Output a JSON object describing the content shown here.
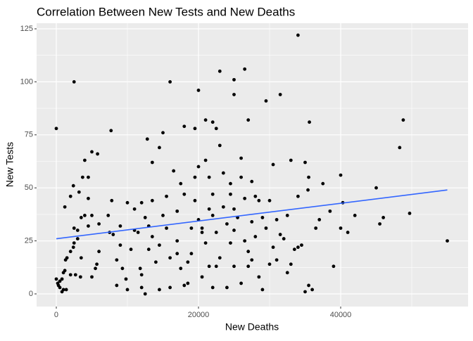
{
  "chart_data": {
    "type": "scatter",
    "title": "Correlation Between New Tests and New Deaths",
    "x_label": "New Deaths",
    "y_label": "New Tests",
    "color": "#000000",
    "x": [
      0,
      2500,
      16000,
      34000,
      26500,
      23000,
      25000,
      20000,
      29500,
      31500,
      25000,
      48800,
      48300,
      55000,
      49700,
      45000,
      40000,
      39000,
      35600,
      35500,
      35400,
      35000,
      34000,
      33000,
      21000,
      22000,
      27000,
      19500,
      18000,
      22500,
      7700,
      15000,
      14500,
      12800,
      13500,
      5000,
      5800,
      2400,
      3200,
      3700,
      4500,
      4000,
      4500,
      2000,
      1200,
      5000,
      4000,
      3500,
      3000,
      2500,
      2500,
      2400,
      2000,
      1500,
      1300,
      1000,
      1200,
      800,
      500,
      0,
      200,
      300,
      500,
      800,
      1000,
      1400,
      2000,
      2700,
      3400,
      5000,
      5500,
      5700,
      6000,
      7300,
      7800,
      8000,
      8500,
      9000,
      9300,
      9800,
      10000,
      10500,
      11000,
      11500,
      12000,
      11800,
      12000,
      12500,
      12000,
      13000,
      13500,
      13500,
      14000,
      14500,
      15000,
      15500,
      16000,
      15500,
      16500,
      17000,
      17500,
      17000,
      18000,
      18000,
      18500,
      19000,
      19500,
      20000,
      20000,
      20500,
      20500,
      21000,
      21500,
      21500,
      22000,
      22500,
      22000,
      23000,
      23500,
      23500,
      24000,
      24000,
      24500,
      25000,
      25000,
      25500,
      26000,
      26500,
      26000,
      26500,
      27000,
      27000,
      27500,
      28000,
      28000,
      28500,
      29000,
      29500,
      30000,
      30000,
      30500,
      31000,
      31500,
      32000,
      32500,
      33000,
      34000,
      35000,
      35500,
      36000,
      36500,
      37000,
      37500,
      38500,
      40000,
      40300,
      41000,
      42000,
      45500,
      46000,
      16000,
      17000,
      19000,
      20500,
      21500,
      22500,
      24500,
      27500,
      28500,
      30500,
      31000,
      32500,
      23000,
      18500,
      13000,
      9000,
      10000,
      14500,
      3000,
      4500,
      6000,
      7500,
      3500,
      26000,
      25000,
      29000,
      33500,
      34500,
      21000,
      24500,
      27500,
      12500,
      11000,
      8500,
      17500,
      19500,
      22000
    ],
    "values": [
      78,
      100,
      100,
      122,
      106,
      105,
      101,
      96,
      91,
      94,
      94,
      82,
      69,
      25,
      38,
      50,
      56,
      13,
      81,
      55,
      49,
      62,
      46,
      63,
      82,
      81,
      82,
      78,
      79,
      78,
      77,
      76,
      69,
      73,
      62,
      67,
      66,
      51,
      48,
      55,
      55,
      63,
      45,
      46,
      41,
      37,
      37,
      36,
      30,
      31,
      24,
      22,
      20,
      17,
      16,
      10,
      11,
      7,
      6,
      7,
      5,
      4,
      3,
      1,
      2,
      2,
      9,
      9,
      8,
      8,
      12,
      14,
      20,
      37,
      44,
      28,
      4,
      32,
      12,
      7,
      43,
      21,
      30,
      29,
      43,
      12,
      3,
      0,
      9,
      21,
      27,
      44,
      15,
      23,
      37,
      31,
      3,
      46,
      58,
      39,
      52,
      19,
      47,
      4,
      5,
      31,
      44,
      60,
      35,
      29,
      31,
      24,
      55,
      40,
      47,
      29,
      3,
      70,
      57,
      41,
      3,
      33,
      52,
      40,
      30,
      36,
      64,
      45,
      55,
      25,
      20,
      13,
      53,
      46,
      27,
      8,
      2,
      31,
      44,
      14,
      22,
      16,
      28,
      26,
      10,
      14,
      22,
      1,
      4,
      2,
      31,
      35,
      52,
      39,
      31,
      43,
      29,
      37,
      33,
      36,
      17,
      25,
      19,
      8,
      13,
      13,
      24,
      16,
      44,
      61,
      35,
      37,
      17,
      15,
      32,
      23,
      2,
      2,
      26,
      32,
      33,
      29,
      17,
      5,
      13,
      36,
      21,
      23,
      63,
      47,
      34,
      36,
      40,
      16,
      12,
      55,
      37
    ],
    "trend": {
      "x": [
        0,
        55000
      ],
      "values": [
        26,
        49
      ],
      "color": "#3366ff"
    },
    "xlim": [
      -2772,
      57920
    ],
    "xticks": [
      0,
      20000,
      40000
    ],
    "ylim": [
      -5.97,
      127.65
    ],
    "yticks": [
      0,
      25,
      50,
      75,
      100,
      125
    ],
    "grid": true
  }
}
